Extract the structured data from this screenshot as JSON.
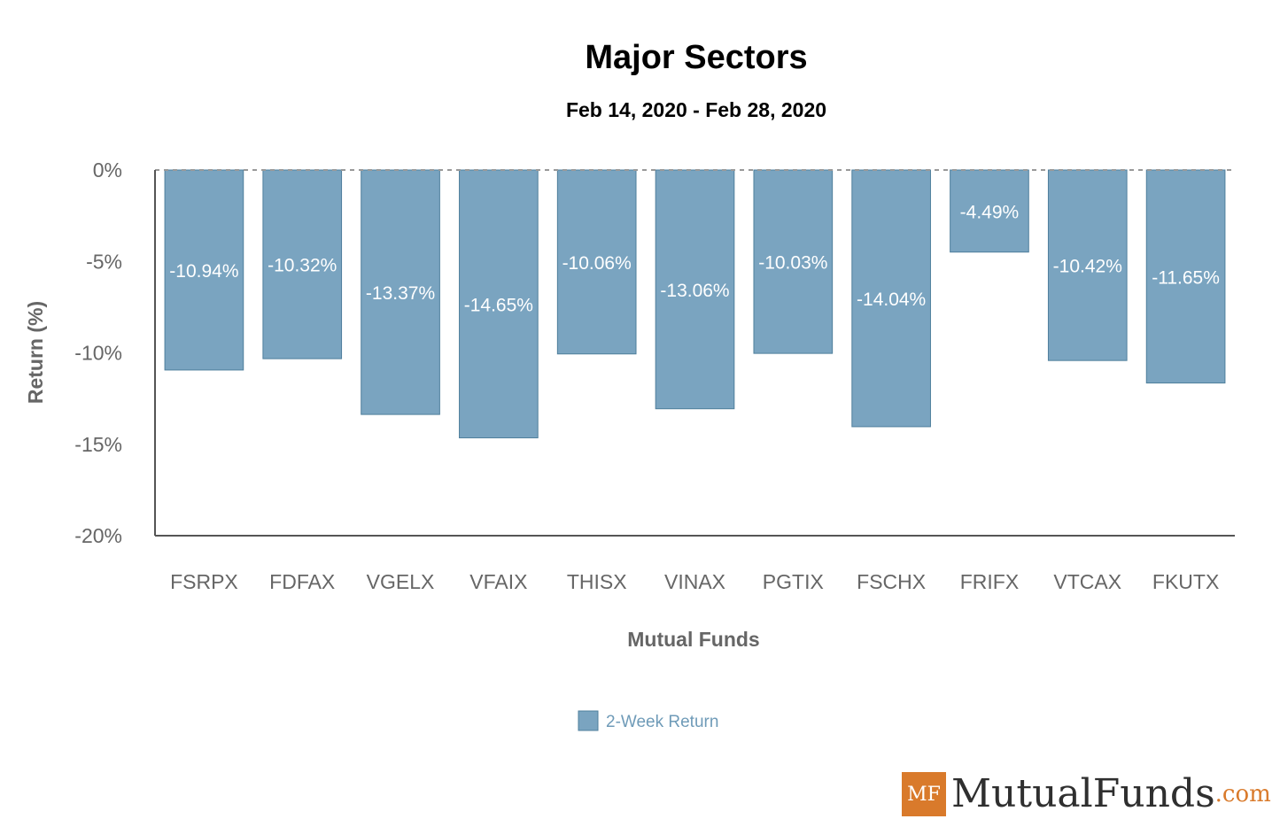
{
  "chart_data": {
    "type": "bar",
    "title": "Major Sectors",
    "subtitle": "Feb 14, 2020 - Feb 28, 2020",
    "xlabel": "Mutual Funds",
    "ylabel": "Return (%)",
    "ylim": [
      -20,
      0
    ],
    "yticks": [
      0,
      -5,
      -10,
      -15,
      -20
    ],
    "ytick_labels": [
      "0%",
      "-5%",
      "-10%",
      "-15%",
      "-20%"
    ],
    "categories": [
      "FSRPX",
      "FDFAX",
      "VGELX",
      "VFAIX",
      "THISX",
      "VINAX",
      "PGTIX",
      "FSCHX",
      "FRIFX",
      "VTCAX",
      "FKUTX"
    ],
    "series": [
      {
        "name": "2-Week Return",
        "values": [
          -10.94,
          -10.32,
          -13.37,
          -14.65,
          -10.06,
          -13.06,
          -10.03,
          -14.04,
          -4.49,
          -10.42,
          -11.65
        ],
        "labels": [
          "-10.94%",
          "-10.32%",
          "-13.37%",
          "-14.65%",
          "-10.06%",
          "-13.06%",
          "-10.03%",
          "-14.04%",
          "-4.49%",
          "-10.42%",
          "-11.65%"
        ]
      }
    ],
    "legend_position": "bottom-center",
    "colors": {
      "bar": "#7aa4c0",
      "bar_stroke": "#4f7f9c",
      "axis": "#555555",
      "grid": "#999999",
      "label": "#ffffff",
      "legend_text": "#6f9bb8"
    }
  },
  "branding": {
    "logo_mark": "MF",
    "logo_name": "MutualFunds",
    "logo_tld": ".com",
    "colors": {
      "accent": "#d97a2b",
      "text": "#2f2f2f"
    }
  }
}
